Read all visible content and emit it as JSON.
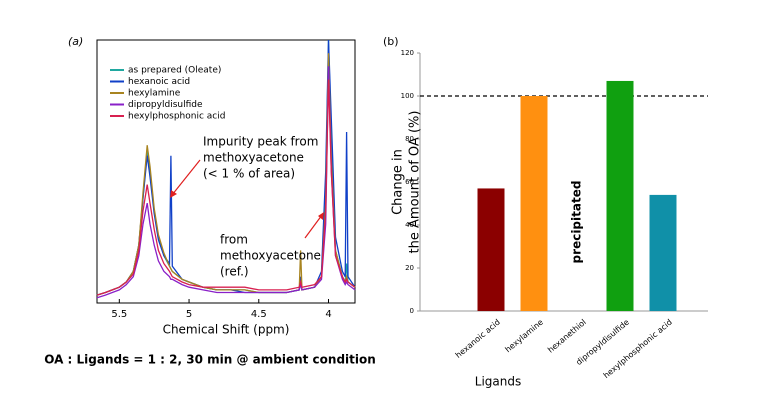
{
  "caption": "OA : Ligands = 1 : 2, 30 min @ ambient condition",
  "chart_data": [
    {
      "type": "line",
      "panel_label": "(a)",
      "x_label": "Chemical Shift (ppm)",
      "xlim": [
        5.66,
        3.81
      ],
      "xticks": [
        5.5,
        5.0,
        4.5,
        4.0
      ],
      "ylim": [
        0,
        100
      ],
      "x": [
        5.66,
        5.6,
        5.55,
        5.5,
        5.45,
        5.4,
        5.36,
        5.33,
        5.3,
        5.28,
        5.25,
        5.22,
        5.18,
        5.14,
        5.13,
        5.12,
        5.05,
        5.0,
        4.9,
        4.8,
        4.7,
        4.6,
        4.5,
        4.4,
        4.3,
        4.21,
        4.2,
        4.19,
        4.1,
        4.05,
        4.02,
        4.0,
        3.98,
        3.95,
        3.9,
        3.88,
        3.87,
        3.86,
        3.81
      ],
      "series": [
        {
          "name": "as prepared (Oleate)",
          "color": "#20a8a0",
          "values": [
            3,
            4,
            5,
            6,
            8,
            12,
            22,
            40,
            58,
            50,
            35,
            25,
            18,
            14,
            13,
            12,
            9,
            8,
            6,
            5,
            5,
            5,
            4,
            4,
            4,
            5,
            8,
            5,
            6,
            10,
            40,
            100,
            60,
            20,
            10,
            8,
            15,
            8,
            6
          ]
        },
        {
          "name": "hexanoic acid",
          "color": "#1040c8",
          "values": [
            3,
            4,
            5,
            6,
            8,
            12,
            22,
            40,
            56,
            48,
            34,
            24,
            18,
            15,
            56,
            14,
            9,
            8,
            6,
            5,
            5,
            4,
            4,
            4,
            4,
            5,
            10,
            5,
            6,
            12,
            50,
            100,
            70,
            25,
            12,
            10,
            65,
            10,
            6
          ]
        },
        {
          "name": "hexylamine",
          "color": "#a88420",
          "values": [
            3,
            4,
            5,
            6,
            8,
            12,
            22,
            42,
            60,
            52,
            36,
            26,
            19,
            14,
            13,
            12,
            9,
            8,
            6,
            5,
            5,
            5,
            4,
            4,
            4,
            5,
            20,
            5,
            6,
            10,
            38,
            95,
            55,
            20,
            10,
            8,
            10,
            8,
            6
          ]
        },
        {
          "name": "dipropyldisulfide",
          "color": "#8a20c8",
          "values": [
            2,
            3,
            4,
            5,
            7,
            10,
            18,
            30,
            38,
            30,
            22,
            16,
            12,
            10,
            9,
            9,
            7,
            6,
            5,
            4,
            4,
            4,
            4,
            4,
            4,
            5,
            7,
            5,
            6,
            9,
            30,
            90,
            50,
            18,
            9,
            7,
            8,
            7,
            5
          ]
        },
        {
          "name": "hexylphosphonic acid",
          "color": "#d82050",
          "values": [
            3,
            4,
            5,
            6,
            8,
            11,
            20,
            35,
            45,
            38,
            28,
            20,
            15,
            12,
            11,
            10,
            8,
            7,
            6,
            6,
            6,
            6,
            5,
            5,
            5,
            6,
            8,
            6,
            7,
            10,
            35,
            85,
            50,
            18,
            10,
            8,
            9,
            8,
            6
          ]
        }
      ],
      "annotations": [
        {
          "lines": [
            "Impurity peak from",
            "methoxyacetone",
            "(< 1 % of area)"
          ],
          "color": "#e02020"
        },
        {
          "lines": [
            "from",
            "methoxyacetone",
            "(ref.)"
          ],
          "color": "#e02020"
        }
      ]
    },
    {
      "type": "bar",
      "panel_label": "(b)",
      "x_label": "Ligands",
      "y_label": [
        "Change in",
        "the Amount of OA (%)"
      ],
      "categories": [
        "hexanoic acid",
        "hexylamine",
        "hexanethiol",
        "dipropyldisulfide",
        "hexylphosphonic acid"
      ],
      "values": [
        57,
        100,
        null,
        107,
        54
      ],
      "colors": [
        "#8b0000",
        "#ff9010",
        "#000000",
        "#10a010",
        "#1090a8"
      ],
      "ylim": [
        0,
        120
      ],
      "yticks": [
        0,
        20,
        40,
        60,
        80,
        100,
        120
      ],
      "reference_line": 100,
      "missing_label": "precipitated"
    }
  ]
}
